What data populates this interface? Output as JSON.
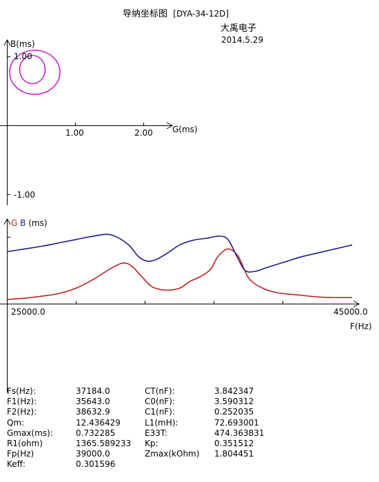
{
  "header": {
    "title": "导纳坐标图",
    "model": "[DYA-34-12D]",
    "company": "大禹电子",
    "date": "2014.5.29"
  },
  "chart_data": [
    {
      "type": "scatter",
      "description_role": "admittance circle",
      "x_axis_label": "G(ms)",
      "y_axis_label": "B(ms)",
      "x_ticks": [
        "1.00",
        "2.00"
      ],
      "y_ticks": [
        "1.00",
        "-1.00"
      ],
      "xlim": [
        -0.07,
        2.9
      ],
      "ylim": [
        -1.14,
        1.16
      ],
      "loops": [
        {
          "center": [
            0.4,
            0.77
          ],
          "rx": 0.365,
          "ry": 0.32
        },
        {
          "center": [
            0.365,
            0.81
          ],
          "rx": 0.185,
          "ry": 0.205
        }
      ],
      "color": "#cc22cc"
    },
    {
      "type": "line",
      "description_role": "frequency response",
      "ylabel_g": "G",
      "ylabel_b": "B",
      "ylabel_unit": "(ms)",
      "xlabel": "F(Hz)",
      "x_ticks": [
        "25000.0",
        "45000.0"
      ],
      "xlim": [
        25000,
        45000
      ],
      "ylim": [
        0,
        1
      ],
      "series": [
        {
          "name": "G",
          "color": "#c02020",
          "x": [
            25000,
            26000,
            27000,
            28000,
            29000,
            30000,
            31000,
            31700,
            32200,
            32800,
            33400,
            34200,
            35000,
            35600,
            36200,
            36800,
            37200,
            37800,
            38400,
            39000,
            39800,
            40700,
            41800,
            43000,
            44000,
            45000
          ],
          "y": [
            0.03,
            0.05,
            0.08,
            0.12,
            0.2,
            0.33,
            0.49,
            0.57,
            0.53,
            0.37,
            0.22,
            0.17,
            0.2,
            0.3,
            0.37,
            0.48,
            0.66,
            0.78,
            0.67,
            0.35,
            0.2,
            0.13,
            0.1,
            0.07,
            0.06,
            0.06
          ]
        },
        {
          "name": "B",
          "color": "#1a1a8c",
          "x": [
            25000,
            26000,
            27000,
            28000,
            29000,
            30000,
            31000,
            32000,
            32600,
            33100,
            33600,
            34300,
            35000,
            35800,
            36600,
            37300,
            37800,
            38300,
            38800,
            39400,
            40000,
            41000,
            42000,
            43000,
            44000,
            45000
          ],
          "y": [
            0.74,
            0.78,
            0.82,
            0.87,
            0.92,
            0.97,
            0.99,
            0.85,
            0.67,
            0.6,
            0.62,
            0.72,
            0.84,
            0.91,
            0.94,
            0.97,
            0.92,
            0.68,
            0.46,
            0.45,
            0.5,
            0.58,
            0.66,
            0.72,
            0.78,
            0.84
          ]
        }
      ]
    }
  ],
  "params": [
    {
      "label": "Fs(Hz):",
      "value": "37184.0",
      "label2": "CT(nF):",
      "value2": "3.842347"
    },
    {
      "label": "F1(Hz):",
      "value": "35643.0",
      "label2": "C0(nF):",
      "value2": "3.590312"
    },
    {
      "label": "F2(Hz):",
      "value": "38632.9",
      "label2": "C1(nF):",
      "value2": "0.252035"
    },
    {
      "label": "Qm:",
      "value": "12.436429",
      "label2": "L1(mH):",
      "value2": "72.693001"
    },
    {
      "label": "Gmax(ms):",
      "value": "0.732285",
      "label2": "E33T:",
      "value2": "474.363831"
    },
    {
      "label": "R1(ohm)",
      "value": "1365.589233",
      "label2": "Kp:",
      "value2": "0.351512"
    },
    {
      "label": "Fp(Hz)",
      "value": "39000.0",
      "label2": "Zmax(kOhm)",
      "value2": "1.804451"
    },
    {
      "label": "Keff:",
      "value": "0.301596",
      "label2": "",
      "value2": ""
    }
  ]
}
